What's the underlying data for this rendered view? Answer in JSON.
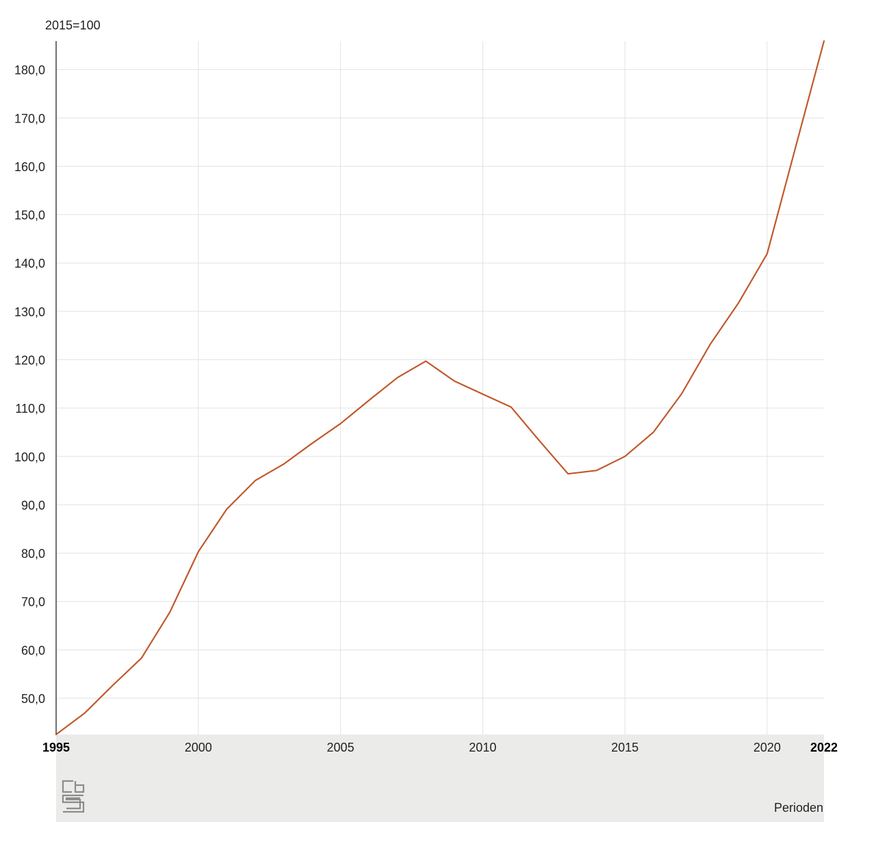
{
  "chart_data": {
    "type": "line",
    "unit_label": "2015=100",
    "xlabel": "Perioden",
    "x": [
      1995,
      1996,
      1997,
      1998,
      1999,
      2000,
      2001,
      2002,
      2003,
      2004,
      2005,
      2006,
      2007,
      2008,
      2009,
      2010,
      2011,
      2012,
      2013,
      2014,
      2015,
      2016,
      2017,
      2018,
      2019,
      2020,
      2021,
      2022
    ],
    "series": [
      {
        "values": [
          42.5,
          46.9,
          52.7,
          58.3,
          67.8,
          80.3,
          89.1,
          95.0,
          98.4,
          102.7,
          106.8,
          111.6,
          116.3,
          119.7,
          115.6,
          112.9,
          110.2,
          103.2,
          96.4,
          97.1,
          100.0,
          105.0,
          113.0,
          123.2,
          131.8,
          141.9,
          163.9,
          185.9
        ]
      }
    ],
    "ylim": [
      42.5,
      185.9
    ],
    "yticks": [
      "50,0",
      "60,0",
      "70,0",
      "80,0",
      "90,0",
      "100,0",
      "110,0",
      "120,0",
      "130,0",
      "140,0",
      "150,0",
      "160,0",
      "170,0",
      "180,0"
    ],
    "ytick_values": [
      50,
      60,
      70,
      80,
      90,
      100,
      110,
      120,
      130,
      140,
      150,
      160,
      170,
      180
    ],
    "xticks": [
      "1995",
      "2000",
      "2005",
      "2010",
      "2015",
      "2020",
      "2022"
    ],
    "xtick_values": [
      1995,
      2000,
      2005,
      2010,
      2015,
      2020,
      2022
    ],
    "xticks_bold": [
      "1995",
      "2022"
    ],
    "grid": true,
    "line_color": "#c0582b",
    "footer_color": "#ebebea"
  },
  "logo": {
    "text": "cbs"
  }
}
